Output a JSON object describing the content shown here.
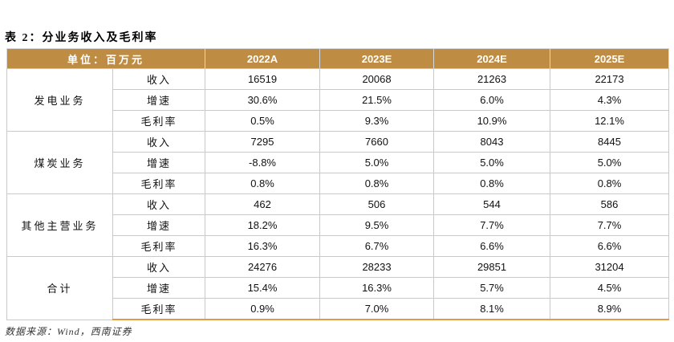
{
  "title": "表 2：分业务收入及毛利率",
  "table": {
    "unit_label": "单位：百万元",
    "year_columns": [
      "2022A",
      "2023E",
      "2024E",
      "2025E"
    ],
    "metric_labels": [
      "收入",
      "增速",
      "毛利率"
    ],
    "groups": [
      {
        "name": "发电业务",
        "rows": [
          [
            "16519",
            "20068",
            "21263",
            "22173"
          ],
          [
            "30.6%",
            "21.5%",
            "6.0%",
            "4.3%"
          ],
          [
            "0.5%",
            "9.3%",
            "10.9%",
            "12.1%"
          ]
        ]
      },
      {
        "name": "煤炭业务",
        "rows": [
          [
            "7295",
            "7660",
            "8043",
            "8445"
          ],
          [
            "-8.8%",
            "5.0%",
            "5.0%",
            "5.0%"
          ],
          [
            "0.8%",
            "0.8%",
            "0.8%",
            "0.8%"
          ]
        ]
      },
      {
        "name": "其他主营业务",
        "rows": [
          [
            "462",
            "506",
            "544",
            "586"
          ],
          [
            "18.2%",
            "9.5%",
            "7.7%",
            "7.7%"
          ],
          [
            "16.3%",
            "6.7%",
            "6.6%",
            "6.6%"
          ]
        ]
      },
      {
        "name": "合计",
        "rows": [
          [
            "24276",
            "28233",
            "29851",
            "31204"
          ],
          [
            "15.4%",
            "16.3%",
            "5.7%",
            "4.5%"
          ],
          [
            "0.9%",
            "7.0%",
            "8.1%",
            "8.9%"
          ]
        ]
      }
    ]
  },
  "footer": {
    "source": "数据来源：Wind，西南证券"
  },
  "colors": {
    "header_bg": "#BE8C42",
    "header_text": "#FFFFFF",
    "border": "#C9C9C9",
    "accent_line": "#E49B43",
    "footer_text": "#333333"
  },
  "chart_data": {
    "type": "table",
    "title": "表 2：分业务收入及毛利率",
    "unit": "百万元",
    "columns": [
      "2022A",
      "2023E",
      "2024E",
      "2025E"
    ],
    "rows": [
      {
        "group": "发电业务",
        "metric": "收入",
        "values": [
          16519,
          20068,
          21263,
          22173
        ]
      },
      {
        "group": "发电业务",
        "metric": "增速",
        "values": [
          "30.6%",
          "21.5%",
          "6.0%",
          "4.3%"
        ]
      },
      {
        "group": "发电业务",
        "metric": "毛利率",
        "values": [
          "0.5%",
          "9.3%",
          "10.9%",
          "12.1%"
        ]
      },
      {
        "group": "煤炭业务",
        "metric": "收入",
        "values": [
          7295,
          7660,
          8043,
          8445
        ]
      },
      {
        "group": "煤炭业务",
        "metric": "增速",
        "values": [
          "-8.8%",
          "5.0%",
          "5.0%",
          "5.0%"
        ]
      },
      {
        "group": "煤炭业务",
        "metric": "毛利率",
        "values": [
          "0.8%",
          "0.8%",
          "0.8%",
          "0.8%"
        ]
      },
      {
        "group": "其他主营业务",
        "metric": "收入",
        "values": [
          462,
          506,
          544,
          586
        ]
      },
      {
        "group": "其他主营业务",
        "metric": "增速",
        "values": [
          "18.2%",
          "9.5%",
          "7.7%",
          "7.7%"
        ]
      },
      {
        "group": "其他主营业务",
        "metric": "毛利率",
        "values": [
          "16.3%",
          "6.7%",
          "6.6%",
          "6.6%"
        ]
      },
      {
        "group": "合计",
        "metric": "收入",
        "values": [
          24276,
          28233,
          29851,
          31204
        ]
      },
      {
        "group": "合计",
        "metric": "增速",
        "values": [
          "15.4%",
          "16.3%",
          "5.7%",
          "4.5%"
        ]
      },
      {
        "group": "合计",
        "metric": "毛利率",
        "values": [
          "0.9%",
          "7.0%",
          "8.1%",
          "8.9%"
        ]
      }
    ]
  }
}
